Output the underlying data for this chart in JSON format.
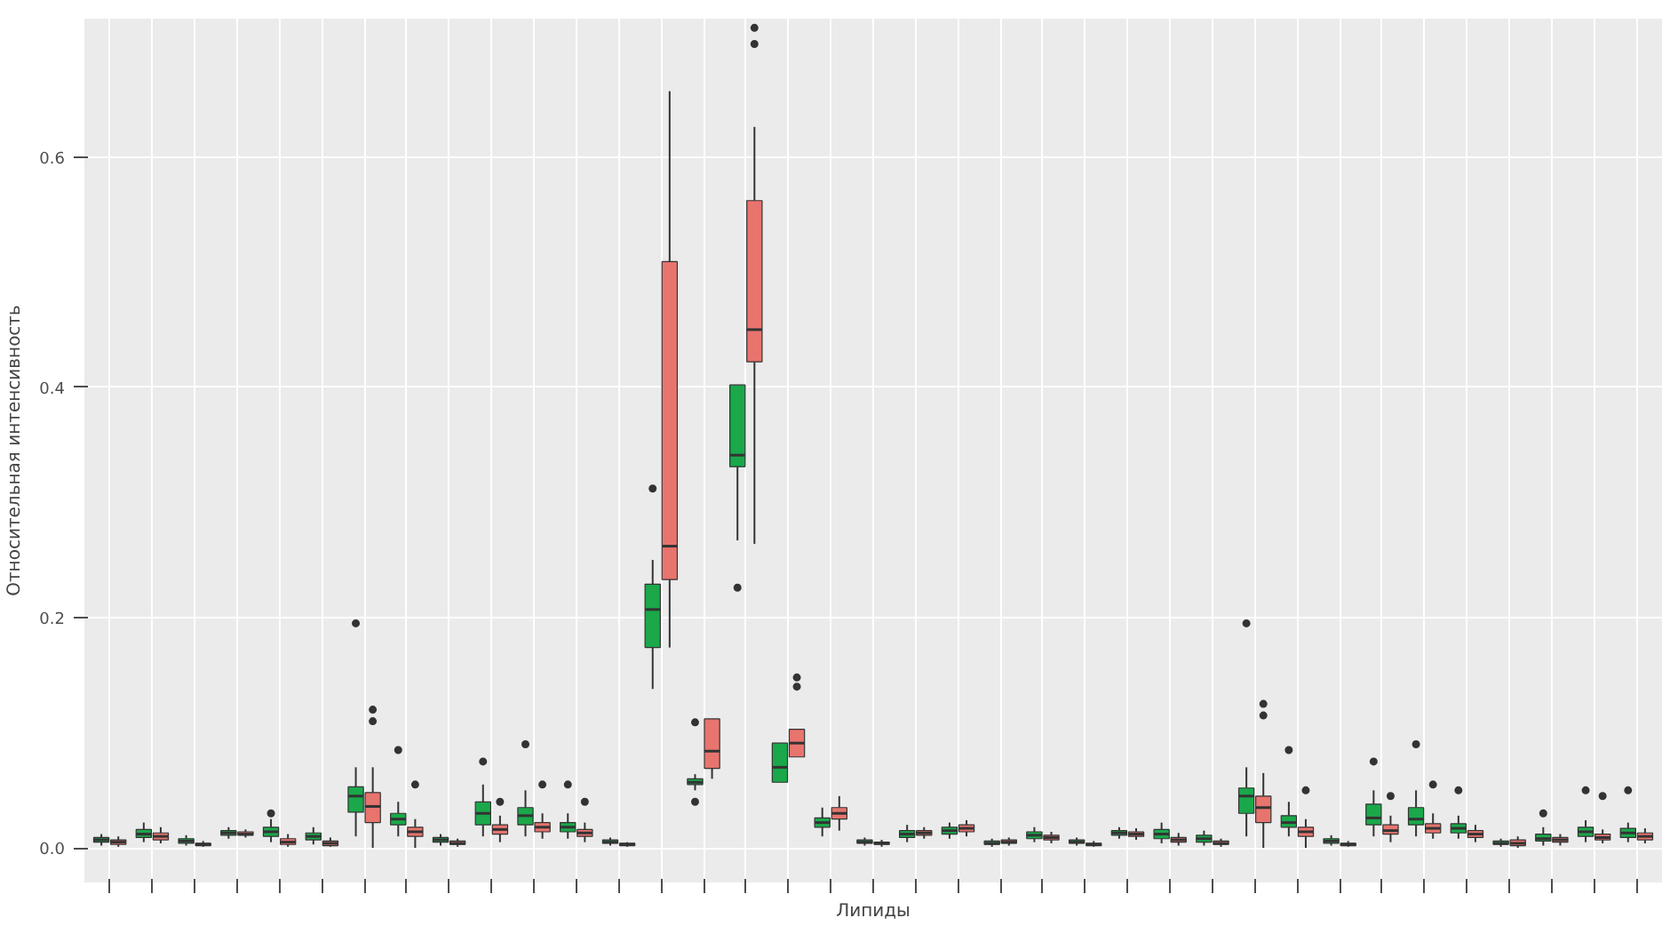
{
  "chart_data": {
    "type": "box",
    "xlabel": "Липиды",
    "ylabel": "Относительная интенсивность",
    "categories": [
      null,
      null,
      null,
      null,
      null,
      null,
      null,
      null,
      null,
      null,
      null,
      null,
      null,
      null,
      null,
      null,
      null,
      null,
      null,
      null,
      null,
      null,
      null,
      null,
      null,
      null,
      null,
      null,
      null,
      null,
      null,
      null,
      null,
      null,
      null,
      null,
      null
    ],
    "ylim": [
      -0.03,
      0.72
    ],
    "yticks": [
      {
        "value": 0,
        "label": "0.0"
      },
      {
        "value": 0.2,
        "label": "0.2"
      },
      {
        "value": 0.4,
        "label": "0.4"
      },
      {
        "value": 0.6,
        "label": "0.6"
      }
    ],
    "grid": true,
    "series": [
      {
        "color": "#1aa84a",
        "boxes": [
          {
            "low": 0.002,
            "q1": 0.005,
            "median": 0.007,
            "q3": 0.009,
            "high": 0.012
          },
          {
            "low": 0.005,
            "q1": 0.009,
            "median": 0.012,
            "q3": 0.016,
            "high": 0.022
          },
          {
            "low": 0.002,
            "q1": 0.004,
            "median": 0.006,
            "q3": 0.008,
            "high": 0.011
          },
          {
            "low": 0.008,
            "q1": 0.011,
            "median": 0.013,
            "q3": 0.015,
            "high": 0.018
          },
          {
            "low": 0.005,
            "q1": 0.01,
            "median": 0.014,
            "q3": 0.018,
            "high": 0.025,
            "outliers": [
              0.03
            ]
          },
          {
            "low": 0.003,
            "q1": 0.007,
            "median": 0.01,
            "q3": 0.013,
            "high": 0.018
          },
          {
            "low": 0.01,
            "q1": 0.031,
            "median": 0.045,
            "q3": 0.053,
            "high": 0.07,
            "outliers": [
              0.195
            ]
          },
          {
            "low": 0.01,
            "q1": 0.02,
            "median": 0.025,
            "q3": 0.03,
            "high": 0.04,
            "outliers": [
              0.085
            ]
          },
          {
            "low": 0.002,
            "q1": 0.005,
            "median": 0.007,
            "q3": 0.009,
            "high": 0.012
          },
          {
            "low": 0.01,
            "q1": 0.02,
            "median": 0.03,
            "q3": 0.04,
            "high": 0.055,
            "outliers": [
              0.075
            ]
          },
          {
            "low": 0.01,
            "q1": 0.02,
            "median": 0.028,
            "q3": 0.035,
            "high": 0.05,
            "outliers": [
              0.09
            ]
          },
          {
            "low": 0.008,
            "q1": 0.014,
            "median": 0.018,
            "q3": 0.022,
            "high": 0.03,
            "outliers": [
              0.055
            ]
          },
          {
            "low": 0.002,
            "q1": 0.004,
            "median": 0.005,
            "q3": 0.007,
            "high": 0.009
          },
          {
            "low": 0.138,
            "q1": 0.174,
            "median": 0.207,
            "q3": 0.229,
            "high": 0.25,
            "outliers": [
              0.312
            ]
          },
          {
            "low": 0.05,
            "q1": 0.055,
            "median": 0.057,
            "q3": 0.06,
            "high": 0.064,
            "outliers": [
              0.04,
              0.109
            ]
          },
          {
            "low": 0.267,
            "q1": 0.331,
            "median": 0.341,
            "q3": 0.402,
            "high": 0.402,
            "outliers": [
              0.226
            ]
          },
          {
            "low": 0.057,
            "q1": 0.057,
            "median": 0.07,
            "q3": 0.091,
            "high": 0.091
          },
          {
            "low": 0.01,
            "q1": 0.018,
            "median": 0.022,
            "q3": 0.026,
            "high": 0.035
          },
          {
            "low": 0.002,
            "q1": 0.004,
            "median": 0.005,
            "q3": 0.007,
            "high": 0.009
          },
          {
            "low": 0.005,
            "q1": 0.009,
            "median": 0.012,
            "q3": 0.015,
            "high": 0.02
          },
          {
            "low": 0.008,
            "q1": 0.012,
            "median": 0.015,
            "q3": 0.018,
            "high": 0.022
          },
          {
            "low": 0.001,
            "q1": 0.003,
            "median": 0.004,
            "q3": 0.006,
            "high": 0.008
          },
          {
            "low": 0.005,
            "q1": 0.008,
            "median": 0.011,
            "q3": 0.014,
            "high": 0.018
          },
          {
            "low": 0.002,
            "q1": 0.004,
            "median": 0.005,
            "q3": 0.007,
            "high": 0.009
          },
          {
            "low": 0.008,
            "q1": 0.011,
            "median": 0.013,
            "q3": 0.015,
            "high": 0.018
          },
          {
            "low": 0.004,
            "q1": 0.008,
            "median": 0.012,
            "q3": 0.016,
            "high": 0.022
          },
          {
            "low": 0.002,
            "q1": 0.005,
            "median": 0.008,
            "q3": 0.011,
            "high": 0.015
          },
          {
            "low": 0.01,
            "q1": 0.03,
            "median": 0.045,
            "q3": 0.052,
            "high": 0.07,
            "outliers": [
              0.195
            ]
          },
          {
            "low": 0.01,
            "q1": 0.018,
            "median": 0.022,
            "q3": 0.028,
            "high": 0.04,
            "outliers": [
              0.085
            ]
          },
          {
            "low": 0.002,
            "q1": 0.004,
            "median": 0.006,
            "q3": 0.008,
            "high": 0.011
          },
          {
            "low": 0.01,
            "q1": 0.02,
            "median": 0.026,
            "q3": 0.038,
            "high": 0.05,
            "outliers": [
              0.075
            ]
          },
          {
            "low": 0.01,
            "q1": 0.02,
            "median": 0.025,
            "q3": 0.035,
            "high": 0.05,
            "outliers": [
              0.09
            ]
          },
          {
            "low": 0.008,
            "q1": 0.013,
            "median": 0.017,
            "q3": 0.021,
            "high": 0.028,
            "outliers": [
              0.05
            ]
          },
          {
            "low": 0.001,
            "q1": 0.003,
            "median": 0.004,
            "q3": 0.006,
            "high": 0.008
          },
          {
            "low": 0.002,
            "q1": 0.006,
            "median": 0.008,
            "q3": 0.012,
            "high": 0.018,
            "outliers": [
              0.03
            ]
          },
          {
            "low": 0.005,
            "q1": 0.01,
            "median": 0.014,
            "q3": 0.018,
            "high": 0.024,
            "outliers": [
              0.05
            ]
          },
          {
            "low": 0.005,
            "q1": 0.009,
            "median": 0.013,
            "q3": 0.017,
            "high": 0.022,
            "outliers": [
              0.05
            ]
          }
        ]
      },
      {
        "color": "#e8746e",
        "boxes": [
          {
            "low": 0.001,
            "q1": 0.003,
            "median": 0.005,
            "q3": 0.007,
            "high": 0.01
          },
          {
            "low": 0.004,
            "q1": 0.007,
            "median": 0.01,
            "q3": 0.013,
            "high": 0.018
          },
          {
            "low": 0.001,
            "q1": 0.002,
            "median": 0.003,
            "q3": 0.004,
            "high": 0.006
          },
          {
            "low": 0.009,
            "q1": 0.011,
            "median": 0.012,
            "q3": 0.014,
            "high": 0.016
          },
          {
            "low": 0.001,
            "q1": 0.003,
            "median": 0.005,
            "q3": 0.008,
            "high": 0.012
          },
          {
            "low": 0.001,
            "q1": 0.002,
            "median": 0.004,
            "q3": 0.006,
            "high": 0.009
          },
          {
            "low": 0.0,
            "q1": 0.022,
            "median": 0.036,
            "q3": 0.048,
            "high": 0.07,
            "outliers": [
              0.12,
              0.11
            ]
          },
          {
            "low": 0.0,
            "q1": 0.01,
            "median": 0.014,
            "q3": 0.018,
            "high": 0.025,
            "outliers": [
              0.055
            ]
          },
          {
            "low": 0.001,
            "q1": 0.003,
            "median": 0.004,
            "q3": 0.006,
            "high": 0.008
          },
          {
            "low": 0.005,
            "q1": 0.012,
            "median": 0.016,
            "q3": 0.02,
            "high": 0.028,
            "outliers": [
              0.04
            ]
          },
          {
            "low": 0.008,
            "q1": 0.014,
            "median": 0.018,
            "q3": 0.022,
            "high": 0.03,
            "outliers": [
              0.055
            ]
          },
          {
            "low": 0.005,
            "q1": 0.01,
            "median": 0.013,
            "q3": 0.016,
            "high": 0.022,
            "outliers": [
              0.04
            ]
          },
          {
            "low": 0.001,
            "q1": 0.002,
            "median": 0.003,
            "q3": 0.004,
            "high": 0.005
          },
          {
            "low": 0.174,
            "q1": 0.233,
            "median": 0.262,
            "q3": 0.509,
            "high": 0.657
          },
          {
            "low": 0.06,
            "q1": 0.069,
            "median": 0.084,
            "q3": 0.112,
            "high": 0.112
          },
          {
            "low": 0.264,
            "q1": 0.422,
            "median": 0.45,
            "q3": 0.562,
            "high": 0.626,
            "outliers": [
              0.712,
              0.698
            ]
          },
          {
            "low": 0.079,
            "q1": 0.079,
            "median": 0.091,
            "q3": 0.103,
            "high": 0.103,
            "outliers": [
              0.148,
              0.14
            ]
          },
          {
            "low": 0.015,
            "q1": 0.025,
            "median": 0.03,
            "q3": 0.035,
            "high": 0.045
          },
          {
            "low": 0.001,
            "q1": 0.003,
            "median": 0.004,
            "q3": 0.005,
            "high": 0.007
          },
          {
            "low": 0.008,
            "q1": 0.011,
            "median": 0.013,
            "q3": 0.015,
            "high": 0.018
          },
          {
            "low": 0.01,
            "q1": 0.014,
            "median": 0.017,
            "q3": 0.02,
            "high": 0.024
          },
          {
            "low": 0.002,
            "q1": 0.004,
            "median": 0.005,
            "q3": 0.007,
            "high": 0.009
          },
          {
            "low": 0.004,
            "q1": 0.007,
            "median": 0.009,
            "q3": 0.011,
            "high": 0.014
          },
          {
            "low": 0.001,
            "q1": 0.002,
            "median": 0.003,
            "q3": 0.004,
            "high": 0.006
          },
          {
            "low": 0.007,
            "q1": 0.01,
            "median": 0.012,
            "q3": 0.014,
            "high": 0.017
          },
          {
            "low": 0.002,
            "q1": 0.005,
            "median": 0.007,
            "q3": 0.009,
            "high": 0.013
          },
          {
            "low": 0.001,
            "q1": 0.003,
            "median": 0.004,
            "q3": 0.006,
            "high": 0.008
          },
          {
            "low": 0.0,
            "q1": 0.022,
            "median": 0.035,
            "q3": 0.045,
            "high": 0.065,
            "outliers": [
              0.125,
              0.115
            ]
          },
          {
            "low": 0.0,
            "q1": 0.01,
            "median": 0.014,
            "q3": 0.018,
            "high": 0.025,
            "outliers": [
              0.05
            ]
          },
          {
            "low": 0.001,
            "q1": 0.002,
            "median": 0.003,
            "q3": 0.004,
            "high": 0.006
          },
          {
            "low": 0.005,
            "q1": 0.012,
            "median": 0.015,
            "q3": 0.02,
            "high": 0.028,
            "outliers": [
              0.045
            ]
          },
          {
            "low": 0.008,
            "q1": 0.013,
            "median": 0.017,
            "q3": 0.021,
            "high": 0.03,
            "outliers": [
              0.055
            ]
          },
          {
            "low": 0.005,
            "q1": 0.009,
            "median": 0.012,
            "q3": 0.015,
            "high": 0.02
          },
          {
            "low": 0.0,
            "q1": 0.002,
            "median": 0.004,
            "q3": 0.007,
            "high": 0.01
          },
          {
            "low": 0.002,
            "q1": 0.005,
            "median": 0.007,
            "q3": 0.009,
            "high": 0.012
          },
          {
            "low": 0.004,
            "q1": 0.007,
            "median": 0.009,
            "q3": 0.012,
            "high": 0.016,
            "outliers": [
              0.045
            ]
          },
          {
            "low": 0.004,
            "q1": 0.007,
            "median": 0.01,
            "q3": 0.013,
            "high": 0.017
          }
        ]
      }
    ]
  }
}
